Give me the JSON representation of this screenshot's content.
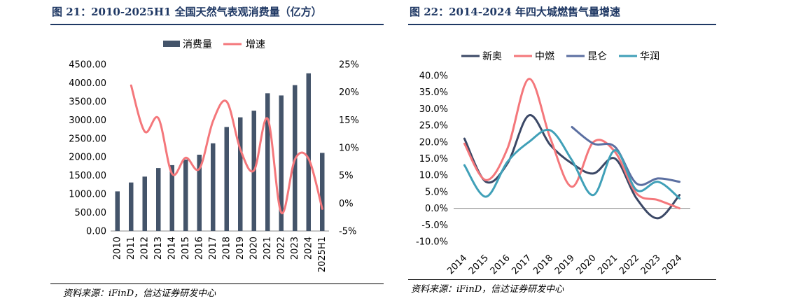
{
  "left": {
    "title": "图 21：2010-2025H1 全国天然气表观消费量（亿方）",
    "source": "资料来源：iFinD，信达证券研发中心"
  },
  "right": {
    "title": "图 22：2014-2024 年四大城燃售气量增速",
    "source": "资料来源：iFinD，信达证券研发中心"
  },
  "chart_data": [
    {
      "type": "bar+line",
      "categories": [
        "2010",
        "2011",
        "2012",
        "2013",
        "2014",
        "2015",
        "2016",
        "2017",
        "2018",
        "2019",
        "2020",
        "2021",
        "2022",
        "2023",
        "2024",
        "2025H1"
      ],
      "series": [
        {
          "name": "消费量",
          "kind": "bar",
          "axis": "left",
          "color": "#44546a",
          "values": [
            1070,
            1310,
            1470,
            1700,
            1780,
            1930,
            2060,
            2370,
            2810,
            3070,
            3250,
            3720,
            3660,
            3940,
            4260,
            2110
          ]
        },
        {
          "name": "增速",
          "kind": "line",
          "axis": "right",
          "color": "#f4777b",
          "values": [
            null,
            21.2,
            12.9,
            15.3,
            5.3,
            8.2,
            6.2,
            14.8,
            18.3,
            9.7,
            5.9,
            15.2,
            -1.7,
            7.9,
            8.0,
            -1.0
          ]
        }
      ],
      "yleft": {
        "min": 0,
        "max": 4500,
        "step": 500,
        "decimals": 2
      },
      "yright": {
        "min": -5,
        "max": 25,
        "step": 5,
        "suffix": "%"
      },
      "legend_position": "top-center",
      "grid": false
    },
    {
      "type": "line",
      "categories": [
        "2014",
        "2015",
        "2016",
        "2017",
        "2018",
        "2019",
        "2020",
        "2021",
        "2022",
        "2023",
        "2024"
      ],
      "series": [
        {
          "name": "新奥",
          "color": "#3b4866",
          "values": [
            21.0,
            8.0,
            13.5,
            28.0,
            19.0,
            13.5,
            10.5,
            15.0,
            3.0,
            -3.0,
            4.0
          ]
        },
        {
          "name": "中燃",
          "color": "#f4777b",
          "values": [
            19.5,
            8.5,
            18.0,
            39.0,
            21.0,
            6.5,
            20.0,
            17.0,
            4.5,
            2.5,
            0.0
          ]
        },
        {
          "name": "昆仑",
          "color": "#5b6fa1",
          "values": [
            null,
            null,
            null,
            null,
            null,
            24.5,
            19.5,
            18.5,
            7.5,
            9.0,
            8.0
          ]
        },
        {
          "name": "华润",
          "color": "#40a0b8",
          "values": [
            13.0,
            3.5,
            14.0,
            20.0,
            23.5,
            14.5,
            4.0,
            17.5,
            5.5,
            8.0,
            3.0
          ]
        }
      ],
      "yaxis": {
        "min": -10,
        "max": 40,
        "step": 5,
        "suffix": "%"
      },
      "legend_position": "top-left",
      "grid": false
    }
  ]
}
